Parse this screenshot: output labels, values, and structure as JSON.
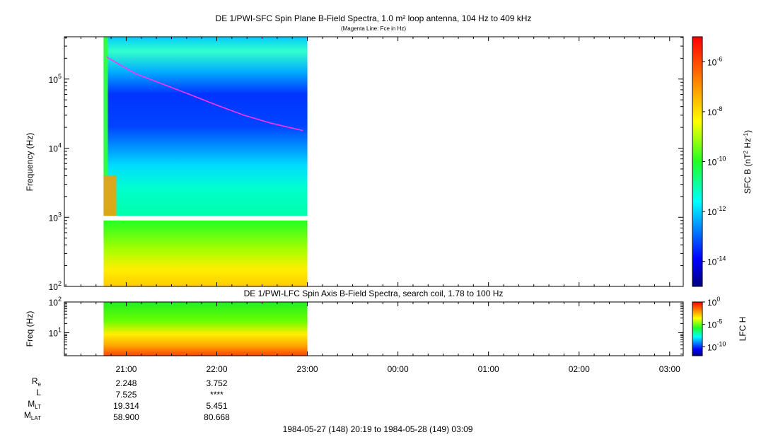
{
  "chart_data": [
    {
      "type": "heatmap",
      "title": "DE 1/PWI-SFC  Spin Plane B-Field Spectra, 1.0 m² loop antenna, 104 Hz to 409 kHz",
      "subtitle": "(Magenta Line: Fce in Hz)",
      "ylabel": "Frequency (Hz)",
      "yscale": "log",
      "ylim": [
        100,
        409000
      ],
      "yticks": [
        {
          "v": 100,
          "b": "10",
          "e": "2"
        },
        {
          "v": 1000,
          "b": "10",
          "e": "3"
        },
        {
          "v": 10000,
          "b": "10",
          "e": "4"
        },
        {
          "v": 100000,
          "b": "10",
          "e": "5"
        }
      ],
      "xlim_hours": [
        20.317,
        27.15
      ],
      "data_span_hours": [
        20.75,
        23.0
      ],
      "colorbar": {
        "label_base": "SFC B (nT",
        "label_sup1": "2",
        "label_mid": " Hz",
        "label_sup2": "-1",
        "label_end": ")",
        "scale": "log",
        "range_log10": [
          -15,
          -5
        ],
        "ticks": [
          {
            "v": -6,
            "b": "10",
            "e": "-6"
          },
          {
            "v": -8,
            "b": "10",
            "e": "-8"
          },
          {
            "v": -10,
            "b": "10",
            "e": "-10"
          },
          {
            "v": -12,
            "b": "10",
            "e": "-12"
          },
          {
            "v": -14,
            "b": "10",
            "e": "-14"
          }
        ]
      },
      "fce_line": {
        "color": "#ff33ff",
        "t_hours": [
          20.78,
          21.1,
          21.4,
          21.7,
          22.0,
          22.3,
          22.6,
          22.95
        ],
        "freq_hz": [
          210000,
          120000,
          85000,
          60000,
          42000,
          30000,
          23000,
          18000
        ]
      }
    },
    {
      "type": "heatmap",
      "title": "DE 1/PWI-LFC  Spin Axis B-Field Spectra, search coil, 1.78 to 100 Hz",
      "ylabel": "Freq (Hz)",
      "yscale": "log",
      "ylim": [
        1.78,
        100
      ],
      "yticks": [
        {
          "v": 10,
          "b": "10",
          "e": "1"
        },
        {
          "v": 100,
          "b": "10",
          "e": "2"
        }
      ],
      "colorbar": {
        "label": "LFC H",
        "scale": "log",
        "range_log10": [
          -12,
          0
        ],
        "ticks": [
          {
            "v": 0,
            "b": "10",
            "e": "0"
          },
          {
            "v": -5,
            "b": "10",
            "e": "-5"
          },
          {
            "v": -10,
            "b": "10",
            "e": "-10"
          }
        ]
      },
      "xticks": [
        {
          "h": 21,
          "label": "21:00"
        },
        {
          "h": 22,
          "label": "22:00"
        },
        {
          "h": 23,
          "label": "23:00"
        },
        {
          "h": 24,
          "label": "00:00"
        },
        {
          "h": 25,
          "label": "01:00"
        },
        {
          "h": 26,
          "label": "02:00"
        },
        {
          "h": 27,
          "label": "03:00"
        }
      ]
    }
  ],
  "ephemeris": {
    "rows": [
      {
        "label": "R",
        "sub": "e",
        "values": [
          "2.248",
          "3.752"
        ]
      },
      {
        "label": "L",
        "sub": "",
        "values": [
          "7.525",
          "****"
        ]
      },
      {
        "label": "M",
        "sub": "LT",
        "values": [
          "19.314",
          "5.451"
        ]
      },
      {
        "label": "M",
        "sub": "LAT",
        "values": [
          "58.900",
          "80.668"
        ]
      }
    ],
    "time_range": "1984-05-27 (148) 20:19 to 1984-05-28 (149) 03:09"
  }
}
